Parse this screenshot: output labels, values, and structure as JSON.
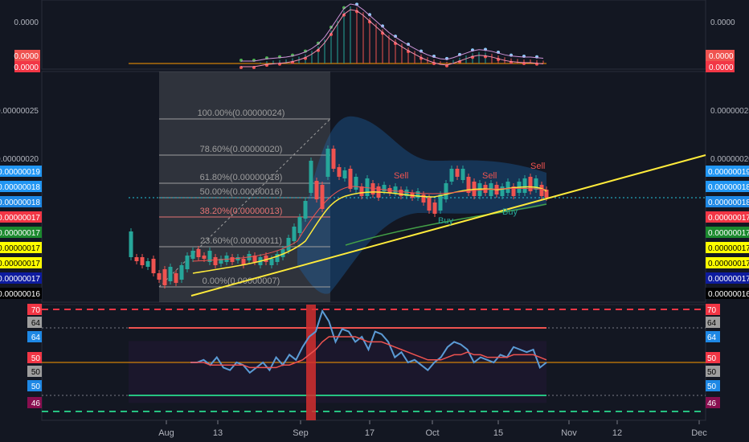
{
  "chart_data": [
    {
      "type": "histogram",
      "panel": "oscillator",
      "y_tick_labels": [
        "0.0000"
      ],
      "badges": [
        {
          "text": "0.0000",
          "color": "#ef5350"
        },
        {
          "text": "0.0000",
          "color": "#f23645"
        }
      ],
      "histogram_heights_relative": [
        0,
        0,
        0,
        0.02,
        0.04,
        0.05,
        0.06,
        0.07,
        0.09,
        0.12,
        0.16,
        0.22,
        0.3,
        0.42,
        0.58,
        0.75,
        0.92,
        1.0,
        0.98,
        0.9,
        0.8,
        0.7,
        0.6,
        0.5,
        0.42,
        0.35,
        0.28,
        0.22,
        0.16,
        0.11,
        0.07,
        0.04,
        0.03,
        0.06,
        0.1,
        0.14,
        0.18,
        0.2,
        0.19,
        0.17,
        0.14,
        0.11,
        0.09,
        0.08,
        0.07,
        0.07,
        0.06,
        0.05
      ]
    },
    {
      "type": "candlestick",
      "panel": "price",
      "y_tick_labels": [
        "0.00000025",
        "0.00000020"
      ],
      "ylim": [
        7e-08,
        2.5e-07
      ],
      "x_tick_labels": [
        "Aug",
        "13",
        "Sep",
        "17",
        "Oct",
        "15",
        "Nov",
        "12",
        "Dec"
      ],
      "fibonacci_levels": [
        {
          "label": "100.00%(0.00000024)",
          "color": "#9e9e9e"
        },
        {
          "label": "78.60%(0.00000020)",
          "color": "#9e9e9e"
        },
        {
          "label": "61.80%(0.00000018)",
          "color": "#9e9e9e"
        },
        {
          "label": "50.00%(0.00000016)",
          "color": "#9e9e9e"
        },
        {
          "label": "38.20%(0.00000013)",
          "color": "#e57373"
        },
        {
          "label": "23.60%(0.00000011)",
          "color": "#9e9e9e"
        },
        {
          "label": "0.00%(0.00000007)",
          "color": "#9e9e9e"
        }
      ],
      "annotations": [
        {
          "text": "Sell",
          "color": "#ef5350"
        },
        {
          "text": "Sell",
          "color": "#ef5350"
        },
        {
          "text": "Sell",
          "color": "#ef5350"
        },
        {
          "text": "Buy",
          "color": "#26a69a"
        },
        {
          "text": "Buy",
          "color": "#26a69a"
        }
      ],
      "price_badges": [
        {
          "text": "0.00000019",
          "color": "#2196f3",
          "text_color": "#ffffff"
        },
        {
          "text": "0.00000018",
          "color": "#2196f3",
          "text_color": "#ffffff"
        },
        {
          "text": "0.00000018",
          "color": "#1e88e5",
          "text_color": "#ffffff"
        },
        {
          "text": "0.00000017",
          "color": "#f23645",
          "text_color": "#ffffff"
        },
        {
          "text": "0.00000017",
          "color": "#1b8a2e",
          "text_color": "#ffffff"
        },
        {
          "text": "0.00000017",
          "color": "#ffff00",
          "text_color": "#000000"
        },
        {
          "text": "0.00000017",
          "color": "#ffff00",
          "text_color": "#000000"
        },
        {
          "text": "0.00000017",
          "color": "#0d1b9e",
          "text_color": "#ffffff"
        },
        {
          "text": "0.00000016",
          "color": "#000000",
          "text_color": "#ffffff"
        }
      ]
    },
    {
      "type": "line",
      "panel": "rsi",
      "y_tick_labels": [
        "70",
        "64",
        "64",
        "50",
        "50",
        "50",
        "46"
      ],
      "series": [
        {
          "values": [
            50,
            50,
            51,
            49,
            52,
            48,
            47,
            50,
            49,
            46,
            48,
            50,
            47,
            52,
            49,
            53,
            51,
            56,
            60,
            62,
            70,
            66,
            58,
            63,
            62,
            58,
            60,
            55,
            62,
            61,
            58,
            52,
            54,
            50,
            51,
            49,
            47,
            50,
            52,
            56,
            58,
            57,
            55,
            50,
            52,
            51,
            50,
            53,
            52,
            56,
            55,
            54,
            55,
            48,
            50
          ]
        },
        {
          "values": [
            50,
            50,
            50,
            49,
            49,
            49,
            49,
            49,
            49,
            48,
            48,
            48,
            48,
            48,
            49,
            49,
            50,
            51,
            53,
            55,
            58,
            60,
            60,
            60,
            60,
            60,
            59,
            58,
            58,
            58,
            57,
            56,
            55,
            54,
            53,
            52,
            51,
            51,
            51,
            52,
            53,
            53,
            54,
            53,
            53,
            52,
            52,
            52,
            52,
            53,
            53,
            53,
            53,
            52,
            51
          ]
        }
      ],
      "reference_lines": [
        70,
        64,
        50,
        46
      ]
    }
  ]
}
